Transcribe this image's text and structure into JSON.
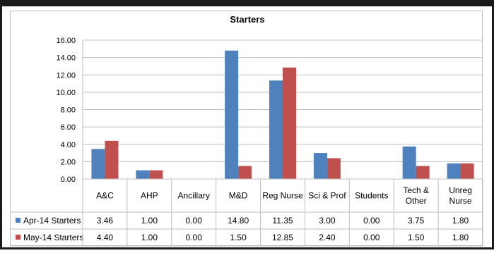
{
  "chart_data": {
    "type": "bar",
    "title": "Starters",
    "categories": [
      "A&C",
      "AHP",
      "Ancillary",
      "M&D",
      "Reg Nurse",
      "Sci & Prof",
      "Students",
      "Tech & Other",
      "Unreg Nurse"
    ],
    "category_lines": [
      [
        "A&C"
      ],
      [
        "AHP"
      ],
      [
        "Ancillary"
      ],
      [
        "M&D"
      ],
      [
        "Reg Nurse"
      ],
      [
        "Sci & Prof"
      ],
      [
        "Students"
      ],
      [
        "Tech &",
        "Other"
      ],
      [
        "Unreg",
        "Nurse"
      ]
    ],
    "series": [
      {
        "name": "Apr-14 Starters",
        "color": "#4f81bd",
        "values": [
          3.46,
          1.0,
          0.0,
          14.8,
          11.35,
          3.0,
          0.0,
          3.75,
          1.8
        ]
      },
      {
        "name": "May-14 Starters",
        "color": "#c0504d",
        "values": [
          4.4,
          1.0,
          0.0,
          1.5,
          12.85,
          2.4,
          0.0,
          1.5,
          1.8
        ]
      }
    ],
    "ylim": [
      0,
      16
    ],
    "yticks": [
      "0.00",
      "2.00",
      "4.00",
      "6.00",
      "8.00",
      "10.00",
      "12.00",
      "14.00",
      "16.00"
    ],
    "grid": true,
    "legend": "data-table",
    "xlabel": "",
    "ylabel": ""
  }
}
